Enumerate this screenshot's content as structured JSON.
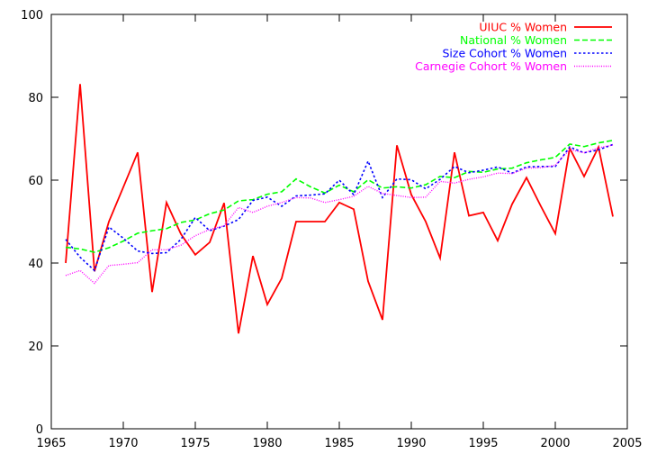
{
  "chart_data": {
    "type": "line",
    "title": "",
    "xlabel": "",
    "ylabel": "",
    "xlim": [
      1965,
      2005
    ],
    "ylim": [
      0,
      100
    ],
    "xticks": [
      1965,
      1970,
      1975,
      1980,
      1985,
      1990,
      1995,
      2000,
      2005
    ],
    "yticks": [
      0,
      20,
      40,
      60,
      80,
      100
    ],
    "grid": false,
    "legend_position": "top-right",
    "x": [
      1966,
      1967,
      1968,
      1969,
      1970,
      1971,
      1972,
      1973,
      1974,
      1975,
      1976,
      1977,
      1978,
      1979,
      1980,
      1981,
      1982,
      1983,
      1984,
      1985,
      1986,
      1987,
      1988,
      1989,
      1990,
      1991,
      1992,
      1993,
      1994,
      1995,
      1996,
      1997,
      1998,
      1999,
      2000,
      2001,
      2002,
      2003,
      2004
    ],
    "series": [
      {
        "name": "UIUC % Women",
        "color": "#ff0000",
        "dash": "solid",
        "values": [
          40.0,
          83.2,
          38.0,
          50.0,
          58.3,
          66.7,
          33.0,
          54.6,
          47.0,
          42.0,
          45.0,
          54.5,
          23.0,
          41.7,
          30.0,
          36.3,
          50.0,
          50.0,
          50.0,
          54.6,
          53.0,
          35.6,
          26.3,
          68.4,
          56.5,
          50.0,
          41.2,
          66.7,
          51.4,
          52.2,
          45.4,
          54.2,
          60.6,
          53.7,
          47.1,
          67.7,
          60.9,
          68.0,
          51.2
        ]
      },
      {
        "name": "National % Women",
        "color": "#00ff00",
        "dash": "dashed",
        "values": [
          43.8,
          43.4,
          42.6,
          43.7,
          45.3,
          47.2,
          47.8,
          48.3,
          49.8,
          50.4,
          51.9,
          52.8,
          55.0,
          55.3,
          56.6,
          57.2,
          60.3,
          58.4,
          56.9,
          58.8,
          57.2,
          60.1,
          58.1,
          58.4,
          58.1,
          58.9,
          60.9,
          60.6,
          62.1,
          61.9,
          62.7,
          62.9,
          64.2,
          64.9,
          65.5,
          68.7,
          68.1,
          69.0,
          69.6
        ]
      },
      {
        "name": "Size Cohort % Women",
        "color": "#0000ff",
        "dash": "dotted",
        "values": [
          45.7,
          41.4,
          38.2,
          48.7,
          46.0,
          42.9,
          42.3,
          42.5,
          45.7,
          51.0,
          47.8,
          48.9,
          50.5,
          55.1,
          55.9,
          53.7,
          56.2,
          56.4,
          56.7,
          60.0,
          56.5,
          64.6,
          55.8,
          60.3,
          60.1,
          57.9,
          60.2,
          63.3,
          61.8,
          62.4,
          63.2,
          61.7,
          63.2,
          63.3,
          63.3,
          68.0,
          66.6,
          67.3,
          68.6
        ]
      },
      {
        "name": "Carnegie Cohort % Women",
        "color": "#ff00ff",
        "dash": "dotted-fine",
        "values": [
          37.0,
          38.2,
          35.1,
          39.4,
          39.7,
          40.1,
          43.2,
          43.2,
          44.3,
          46.6,
          48.1,
          49.0,
          53.4,
          52.2,
          53.7,
          54.6,
          55.8,
          55.7,
          54.6,
          55.3,
          56.1,
          58.5,
          56.8,
          56.3,
          55.8,
          55.9,
          59.7,
          59.3,
          60.2,
          60.8,
          61.7,
          61.6,
          62.9,
          63.0,
          63.6,
          67.4,
          66.6,
          67.8,
          68.5
        ]
      }
    ]
  }
}
